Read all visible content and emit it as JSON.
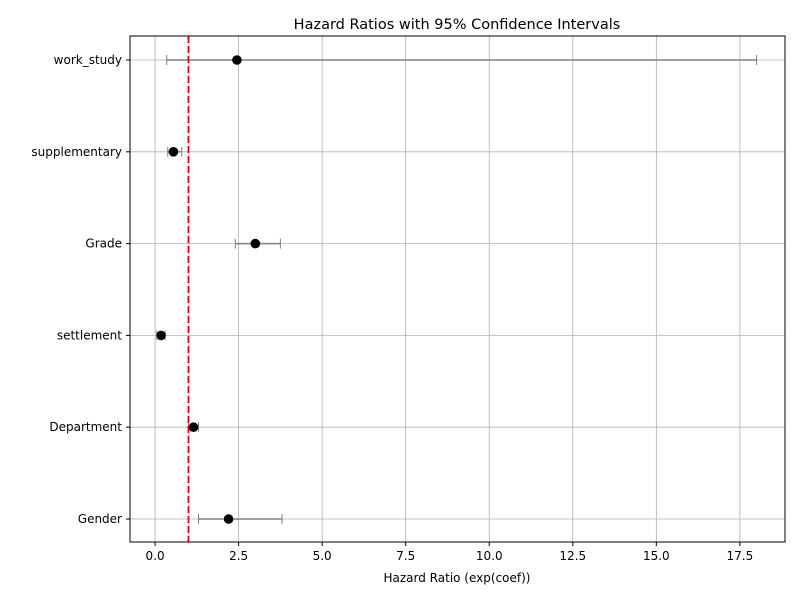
{
  "chart_data": {
    "type": "forest",
    "title": "Hazard Ratios with 95% Confidence Intervals",
    "xlabel": "Hazard Ratio (exp(coef))",
    "ylabel": "",
    "xlim": [
      -0.75,
      18.85
    ],
    "xticks": [
      0.0,
      2.5,
      5.0,
      7.5,
      10.0,
      12.5,
      15.0,
      17.5
    ],
    "xtick_labels": [
      "0.0",
      "2.5",
      "5.0",
      "7.5",
      "10.0",
      "12.5",
      "15.0",
      "17.5"
    ],
    "reference_line": {
      "x": 1.0,
      "color": "#e00000",
      "style": "dashed"
    },
    "grid": true,
    "point_color": "#000000",
    "ci_color": "#808080",
    "categories": [
      "Gender",
      "Department",
      "settlement",
      "Grade",
      "supplementary",
      "work_study"
    ],
    "estimates": [
      2.2,
      1.15,
      0.18,
      3.0,
      0.55,
      2.45
    ],
    "ci_lower": [
      1.3,
      1.0,
      0.05,
      2.4,
      0.38,
      0.35
    ],
    "ci_upper": [
      3.8,
      1.3,
      0.3,
      3.75,
      0.8,
      18.0
    ]
  }
}
